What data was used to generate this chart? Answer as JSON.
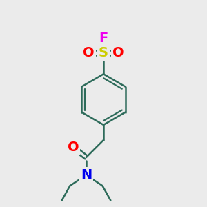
{
  "bg_color": "#ebebeb",
  "atom_colors": {
    "C": "#000000",
    "N": "#0000ee",
    "O": "#ff0000",
    "S": "#cccc00",
    "F": "#ee00ee"
  },
  "bond_color": "#2d6b5a",
  "figsize": [
    3.0,
    3.0
  ],
  "dpi": 100,
  "bond_lw": 1.8,
  "font_size": 14
}
